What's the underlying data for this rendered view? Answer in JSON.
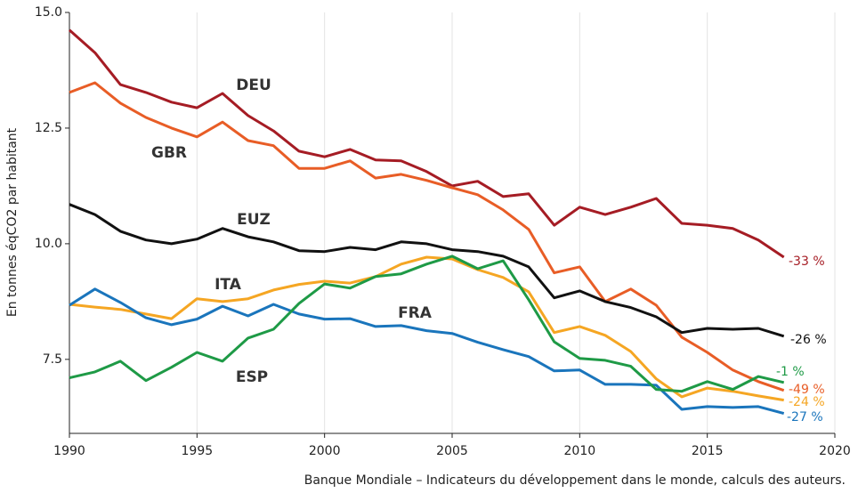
{
  "chart_data": {
    "type": "line",
    "y_label": "En tonnes éqCO2 par habitant",
    "source": "Banque Mondiale – Indicateurs du développement dans le monde, calculs des auteurs.",
    "x": [
      1990,
      1991,
      1992,
      1993,
      1994,
      1995,
      1996,
      1997,
      1998,
      1999,
      2000,
      2001,
      2002,
      2003,
      2004,
      2005,
      2006,
      2007,
      2008,
      2009,
      2010,
      2011,
      2012,
      2013,
      2014,
      2015,
      2016,
      2017,
      2018
    ],
    "xlim": [
      1990,
      2020
    ],
    "xticks": [
      1990,
      1995,
      2000,
      2005,
      2010,
      2015,
      2020
    ],
    "ylim": [
      5.9,
      15.0
    ],
    "yticks": [
      {
        "value": 7.5,
        "label": "7.5"
      },
      {
        "value": 10.0,
        "label": "10.0"
      },
      {
        "value": 12.5,
        "label": "12.5"
      },
      {
        "value": 15.0,
        "label": "15.0"
      }
    ],
    "grid": "x",
    "series": [
      {
        "name": "DEU",
        "color": "#a51c24",
        "end_label": "-33 %",
        "values": [
          14.62,
          14.13,
          13.44,
          13.27,
          13.06,
          12.94,
          13.25,
          12.77,
          12.44,
          12.0,
          11.88,
          12.04,
          11.81,
          11.79,
          11.56,
          11.25,
          11.35,
          11.02,
          11.08,
          10.4,
          10.79,
          10.63,
          10.79,
          10.98,
          10.44,
          10.4,
          10.33,
          10.08,
          9.71
        ]
      },
      {
        "name": "GBR",
        "color": "#e85d26",
        "end_label": "-49 %",
        "values": [
          13.27,
          13.48,
          13.04,
          12.73,
          12.5,
          12.31,
          12.63,
          12.23,
          12.12,
          11.63,
          11.63,
          11.79,
          11.42,
          11.5,
          11.37,
          11.21,
          11.06,
          10.73,
          10.31,
          9.37,
          9.5,
          8.75,
          9.02,
          8.67,
          7.98,
          7.65,
          7.27,
          7.02,
          6.83
        ]
      },
      {
        "name": "EUZ",
        "color": "#111111",
        "end_label": "-26 %",
        "values": [
          10.85,
          10.63,
          10.27,
          10.08,
          10.0,
          10.1,
          10.33,
          10.15,
          10.04,
          9.85,
          9.83,
          9.92,
          9.87,
          10.04,
          10.0,
          9.87,
          9.83,
          9.73,
          9.5,
          8.83,
          8.98,
          8.75,
          8.62,
          8.42,
          8.08,
          8.17,
          8.15,
          8.17,
          8.0
        ]
      },
      {
        "name": "ITA",
        "color": "#f5a623",
        "end_label": "-24 %",
        "values": [
          8.69,
          8.63,
          8.58,
          8.48,
          8.38,
          8.81,
          8.75,
          8.81,
          9.0,
          9.12,
          9.19,
          9.15,
          9.29,
          9.56,
          9.71,
          9.67,
          9.44,
          9.27,
          8.96,
          8.08,
          8.21,
          8.02,
          7.67,
          7.08,
          6.69,
          6.88,
          6.81,
          6.71,
          6.62
        ]
      },
      {
        "name": "FRA",
        "color": "#1a75bc",
        "end_label": "-27 %",
        "values": [
          8.67,
          9.02,
          8.73,
          8.4,
          8.25,
          8.37,
          8.65,
          8.44,
          8.69,
          8.48,
          8.37,
          8.38,
          8.21,
          8.23,
          8.12,
          8.06,
          7.87,
          7.71,
          7.56,
          7.25,
          7.27,
          6.96,
          6.96,
          6.94,
          6.42,
          6.48,
          6.46,
          6.48,
          6.33
        ]
      },
      {
        "name": "ESP",
        "color": "#1e9a46",
        "end_label": "-1 %",
        "values": [
          7.1,
          7.23,
          7.46,
          7.04,
          7.33,
          7.65,
          7.46,
          7.96,
          8.15,
          8.71,
          9.13,
          9.04,
          9.29,
          9.35,
          9.56,
          9.73,
          9.46,
          9.63,
          8.79,
          7.88,
          7.52,
          7.48,
          7.35,
          6.85,
          6.81,
          7.02,
          6.85,
          7.13,
          7.0
        ]
      }
    ]
  }
}
